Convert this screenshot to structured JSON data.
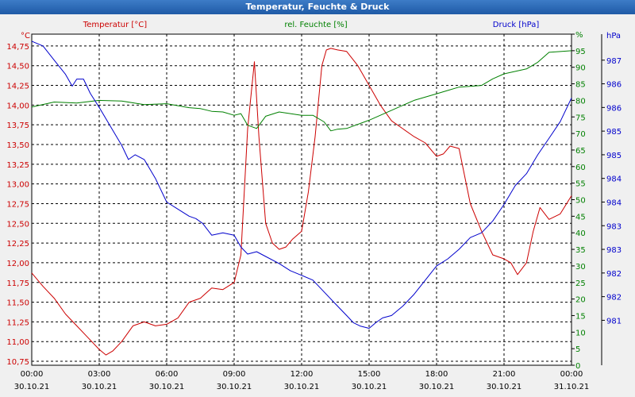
{
  "window": {
    "title": "Temperatur, Feuchte & Druck"
  },
  "colors": {
    "temp": "#cc0000",
    "hum": "#008000",
    "press": "#0000cc",
    "grid": "#000000",
    "axis": "#000000"
  },
  "chart_data": {
    "type": "line",
    "title": "Temperatur, Feuchte & Druck",
    "x_ticks": [
      {
        "time": "00:00",
        "date": "30.10.21"
      },
      {
        "time": "03:00",
        "date": "30.10.21"
      },
      {
        "time": "06:00",
        "date": "30.10.21"
      },
      {
        "time": "09:00",
        "date": "30.10.21"
      },
      {
        "time": "12:00",
        "date": "30.10.21"
      },
      {
        "time": "15:00",
        "date": "30.10.21"
      },
      {
        "time": "18:00",
        "date": "30.10.21"
      },
      {
        "time": "21:00",
        "date": "30.10.21"
      },
      {
        "time": "00:00",
        "date": "31.10.21"
      }
    ],
    "x_range_hours": [
      0,
      24
    ],
    "axes": {
      "temp": {
        "label": "Temperatur [°C]",
        "unit": "°C",
        "range": [
          10.7,
          14.9
        ],
        "ticks": [
          "14,75",
          "14,50",
          "14,25",
          "14,00",
          "13,75",
          "13,50",
          "13,25",
          "13,00",
          "12,75",
          "12,50",
          "12,25",
          "12,00",
          "11,75",
          "11,50",
          "11,25",
          "11,00",
          "10,75"
        ],
        "tick_values": [
          14.75,
          14.5,
          14.25,
          14.0,
          13.75,
          13.5,
          13.25,
          13.0,
          12.75,
          12.5,
          12.25,
          12.0,
          11.75,
          11.5,
          11.25,
          11.0,
          10.75
        ]
      },
      "hum": {
        "label": "rel. Feuchte [%]",
        "unit": "%",
        "range": [
          0,
          100
        ],
        "ticks": [
          "%",
          "95",
          "90",
          "85",
          "80",
          "75",
          "70",
          "65",
          "60",
          "55",
          "50",
          "45",
          "40",
          "35",
          "30",
          "25",
          "20",
          "15",
          "10",
          "5",
          "0"
        ],
        "tick_values": [
          100,
          95,
          90,
          85,
          80,
          75,
          70,
          65,
          60,
          55,
          50,
          45,
          40,
          35,
          30,
          25,
          20,
          15,
          10,
          5,
          0
        ]
      },
      "press": {
        "label": "Druck [hPa]",
        "unit": "hPa",
        "range": [
          980.55,
          987.55
        ],
        "ticks": [
          "987",
          "986",
          "986",
          "985",
          "985",
          "984",
          "984",
          "983",
          "983",
          "982",
          "982",
          "981"
        ],
        "tick_values": [
          987.0,
          986.5,
          986.0,
          985.5,
          985.0,
          984.5,
          984.0,
          983.5,
          983.0,
          982.5,
          982.0,
          981.5
        ]
      }
    },
    "series": [
      {
        "name": "Temperatur [°C]",
        "axis": "temp",
        "x": [
          0,
          0.5,
          1,
          1.5,
          2,
          2.5,
          3,
          3.3,
          3.6,
          4,
          4.5,
          5,
          5.5,
          6,
          6.5,
          7,
          7.5,
          8,
          8.5,
          9,
          9.3,
          9.6,
          9.9,
          10.1,
          10.4,
          10.7,
          11,
          11.3,
          11.6,
          12,
          12.3,
          12.6,
          12.9,
          13.1,
          13.3,
          13.6,
          14,
          14.5,
          15,
          15.5,
          16,
          16.5,
          17,
          17.5,
          18,
          18.3,
          18.6,
          19,
          19.5,
          20,
          20.5,
          21,
          21.3,
          21.6,
          22,
          22.3,
          22.6,
          23,
          23.5,
          24
        ],
        "y": [
          11.87,
          11.7,
          11.55,
          11.35,
          11.2,
          11.05,
          10.9,
          10.83,
          10.88,
          11.0,
          11.2,
          11.25,
          11.2,
          11.22,
          11.3,
          11.5,
          11.55,
          11.68,
          11.66,
          11.75,
          12.1,
          13.7,
          14.55,
          13.6,
          12.5,
          12.25,
          12.17,
          12.2,
          12.3,
          12.4,
          12.9,
          13.6,
          14.5,
          14.7,
          14.72,
          14.7,
          14.68,
          14.5,
          14.25,
          14.0,
          13.8,
          13.7,
          13.6,
          13.52,
          13.35,
          13.38,
          13.48,
          13.45,
          12.75,
          12.4,
          12.1,
          12.05,
          12.0,
          11.85,
          12.0,
          12.4,
          12.7,
          12.55,
          12.62,
          12.85
        ]
      },
      {
        "name": "rel. Feuchte [%]",
        "axis": "hum",
        "x": [
          0,
          1,
          2,
          3,
          4,
          5,
          6,
          7,
          7.5,
          8,
          8.5,
          9,
          9.3,
          9.6,
          10,
          10.4,
          11,
          12,
          12.5,
          13,
          13.3,
          13.6,
          14,
          15,
          16,
          17,
          18,
          18.5,
          19,
          20,
          20.5,
          21,
          22,
          22.5,
          23,
          24
        ],
        "y": [
          78,
          79.5,
          79.2,
          80,
          79.8,
          78.7,
          79,
          77.8,
          77.5,
          76.7,
          76.5,
          75.5,
          76,
          72.5,
          71.5,
          75.2,
          76.5,
          75.5,
          75.5,
          73.5,
          70.8,
          71.3,
          71.5,
          74,
          77,
          80,
          82,
          83,
          84,
          84.5,
          86.5,
          88,
          89.5,
          91.5,
          94.5,
          95
        ]
      },
      {
        "name": "Druck [hPa]",
        "axis": "press",
        "x": [
          0,
          0.5,
          1,
          1.5,
          1.8,
          2,
          2.3,
          2.6,
          3,
          3.5,
          4,
          4.3,
          4.6,
          5,
          5.5,
          6,
          6.5,
          7,
          7.3,
          7.6,
          8,
          8.5,
          9,
          9.3,
          9.6,
          10,
          10.4,
          11,
          11.5,
          12,
          12.5,
          13,
          13.5,
          14,
          14.3,
          14.6,
          15,
          15.3,
          15.6,
          16,
          16.5,
          17,
          17.5,
          18,
          18.5,
          19,
          19.5,
          20,
          20.5,
          21,
          21.5,
          22,
          22.5,
          23,
          23.5,
          24
        ],
        "y": [
          987.4,
          987.3,
          987.0,
          986.7,
          986.45,
          986.6,
          986.6,
          986.3,
          986.0,
          985.6,
          985.2,
          984.9,
          985.0,
          984.9,
          984.5,
          984.0,
          983.85,
          983.7,
          983.65,
          983.55,
          983.3,
          983.35,
          983.3,
          983.05,
          982.9,
          982.95,
          982.85,
          982.7,
          982.55,
          982.45,
          982.35,
          982.1,
          981.85,
          981.6,
          981.45,
          981.38,
          981.33,
          981.45,
          981.55,
          981.6,
          981.8,
          982.05,
          982.35,
          982.65,
          982.8,
          983.0,
          983.25,
          983.35,
          983.6,
          983.95,
          984.35,
          984.6,
          985.0,
          985.35,
          985.7,
          986.2
        ]
      }
    ]
  }
}
